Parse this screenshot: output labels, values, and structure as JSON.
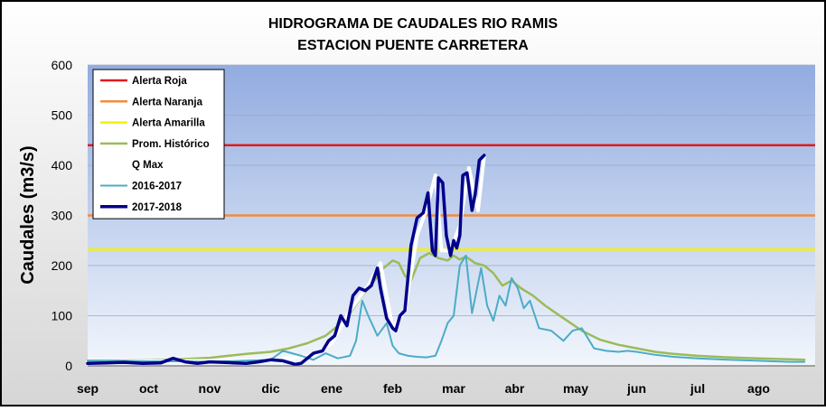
{
  "chart_data": {
    "type": "line",
    "title_line1": "HIDROGRAMA DE CAUDALES RIO RAMIS",
    "title_line2": "ESTACION PUENTE CARRETERA",
    "xlabel": "",
    "ylabel": "Caudales (m3/s)",
    "ylim": [
      0,
      600
    ],
    "y_ticks": [
      "0",
      "100",
      "200",
      "300",
      "400",
      "500",
      "600"
    ],
    "months": [
      "sep",
      "oct",
      "nov",
      "dic",
      "ene",
      "feb",
      "mar",
      "abr",
      "may",
      "jun",
      "jul",
      "ago"
    ],
    "xlim_months": [
      0,
      11.75
    ],
    "grid": "horizontal",
    "legend_position": "top-left",
    "thresholds": [
      {
        "name": "Alerta Roja",
        "value": 440,
        "color": "#e31a1c"
      },
      {
        "name": "Alerta Naranja",
        "value": 300,
        "color": "#f28c3c"
      },
      {
        "name": "Alerta Amarilla",
        "value": 232,
        "color": "#f2f200"
      }
    ],
    "series": [
      {
        "name": "Prom. Histórico",
        "color": "#9bbb59",
        "width": 2.5,
        "x": [
          0,
          0.5,
          1,
          1.5,
          2,
          2.3,
          2.6,
          3,
          3.3,
          3.6,
          3.9,
          4.1,
          4.3,
          4.5,
          4.7,
          4.85,
          5,
          5.1,
          5.2,
          5.3,
          5.45,
          5.6,
          5.75,
          5.9,
          6,
          6.1,
          6.2,
          6.35,
          6.5,
          6.65,
          6.8,
          6.95,
          7.1,
          7.3,
          7.5,
          7.8,
          8.1,
          8.4,
          8.7,
          9,
          9.3,
          9.6,
          10,
          10.5,
          11,
          11.5,
          11.75
        ],
        "y": [
          10,
          10,
          11,
          13,
          16,
          20,
          24,
          28,
          35,
          45,
          60,
          80,
          105,
          140,
          170,
          195,
          210,
          205,
          180,
          170,
          215,
          225,
          215,
          210,
          220,
          212,
          218,
          205,
          200,
          185,
          160,
          170,
          155,
          140,
          120,
          95,
          70,
          52,
          42,
          35,
          28,
          24,
          20,
          17,
          15,
          13,
          12
        ]
      },
      {
        "name": "Q Max",
        "color": "#ffffff",
        "width": 4,
        "x": [
          0,
          1,
          2,
          3,
          3.7,
          4.0,
          4.3,
          4.6,
          4.8,
          5.0,
          5.2,
          5.4,
          5.55,
          5.7,
          5.8,
          5.95,
          6.1,
          6.25,
          6.4,
          6.5
        ],
        "y": [
          8,
          9,
          10,
          12,
          20,
          45,
          110,
          160,
          205,
          75,
          110,
          260,
          310,
          380,
          230,
          230,
          280,
          395,
          310,
          420
        ]
      },
      {
        "name": "2016-2017",
        "color": "#4bacc6",
        "width": 2,
        "x": [
          0,
          0.5,
          1,
          1.5,
          2,
          2.5,
          3,
          3.2,
          3.5,
          3.7,
          3.9,
          4.1,
          4.3,
          4.4,
          4.5,
          4.6,
          4.75,
          4.9,
          5.0,
          5.1,
          5.25,
          5.4,
          5.55,
          5.7,
          5.8,
          5.9,
          6.0,
          6.1,
          6.2,
          6.3,
          6.45,
          6.55,
          6.65,
          6.75,
          6.85,
          6.95,
          7.05,
          7.15,
          7.25,
          7.4,
          7.6,
          7.8,
          7.95,
          8.1,
          8.3,
          8.5,
          8.7,
          8.85,
          9,
          9.3,
          9.6,
          10,
          10.5,
          11,
          11.5,
          11.75
        ],
        "y": [
          10,
          10,
          9,
          9,
          8,
          10,
          12,
          30,
          20,
          12,
          25,
          15,
          20,
          50,
          130,
          100,
          60,
          85,
          40,
          25,
          20,
          18,
          17,
          20,
          50,
          85,
          100,
          200,
          220,
          105,
          195,
          120,
          90,
          140,
          120,
          175,
          155,
          115,
          130,
          75,
          70,
          50,
          70,
          75,
          35,
          30,
          28,
          30,
          28,
          22,
          18,
          15,
          12,
          10,
          8,
          8
        ]
      },
      {
        "name": "2017-2018",
        "color": "#00008b",
        "width": 3.5,
        "x": [
          0,
          0.3,
          0.6,
          0.9,
          1.2,
          1.4,
          1.6,
          1.8,
          2.0,
          2.2,
          2.4,
          2.6,
          2.8,
          3.0,
          3.2,
          3.4,
          3.5,
          3.7,
          3.85,
          3.95,
          4.05,
          4.15,
          4.25,
          4.35,
          4.45,
          4.55,
          4.65,
          4.75,
          4.8,
          4.9,
          5.0,
          5.05,
          5.12,
          5.2,
          5.3,
          5.4,
          5.5,
          5.58,
          5.65,
          5.7,
          5.75,
          5.82,
          5.88,
          5.95,
          6.0,
          6.05,
          6.1,
          6.15,
          6.22,
          6.3,
          6.35,
          6.42,
          6.5
        ],
        "y": [
          5,
          6,
          7,
          5,
          6,
          15,
          8,
          5,
          8,
          7,
          6,
          5,
          8,
          12,
          10,
          3,
          5,
          25,
          30,
          50,
          60,
          100,
          80,
          140,
          155,
          150,
          160,
          195,
          155,
          95,
          75,
          70,
          100,
          110,
          240,
          295,
          305,
          345,
          230,
          220,
          375,
          365,
          260,
          220,
          250,
          235,
          260,
          380,
          385,
          310,
          340,
          410,
          420
        ]
      }
    ]
  }
}
